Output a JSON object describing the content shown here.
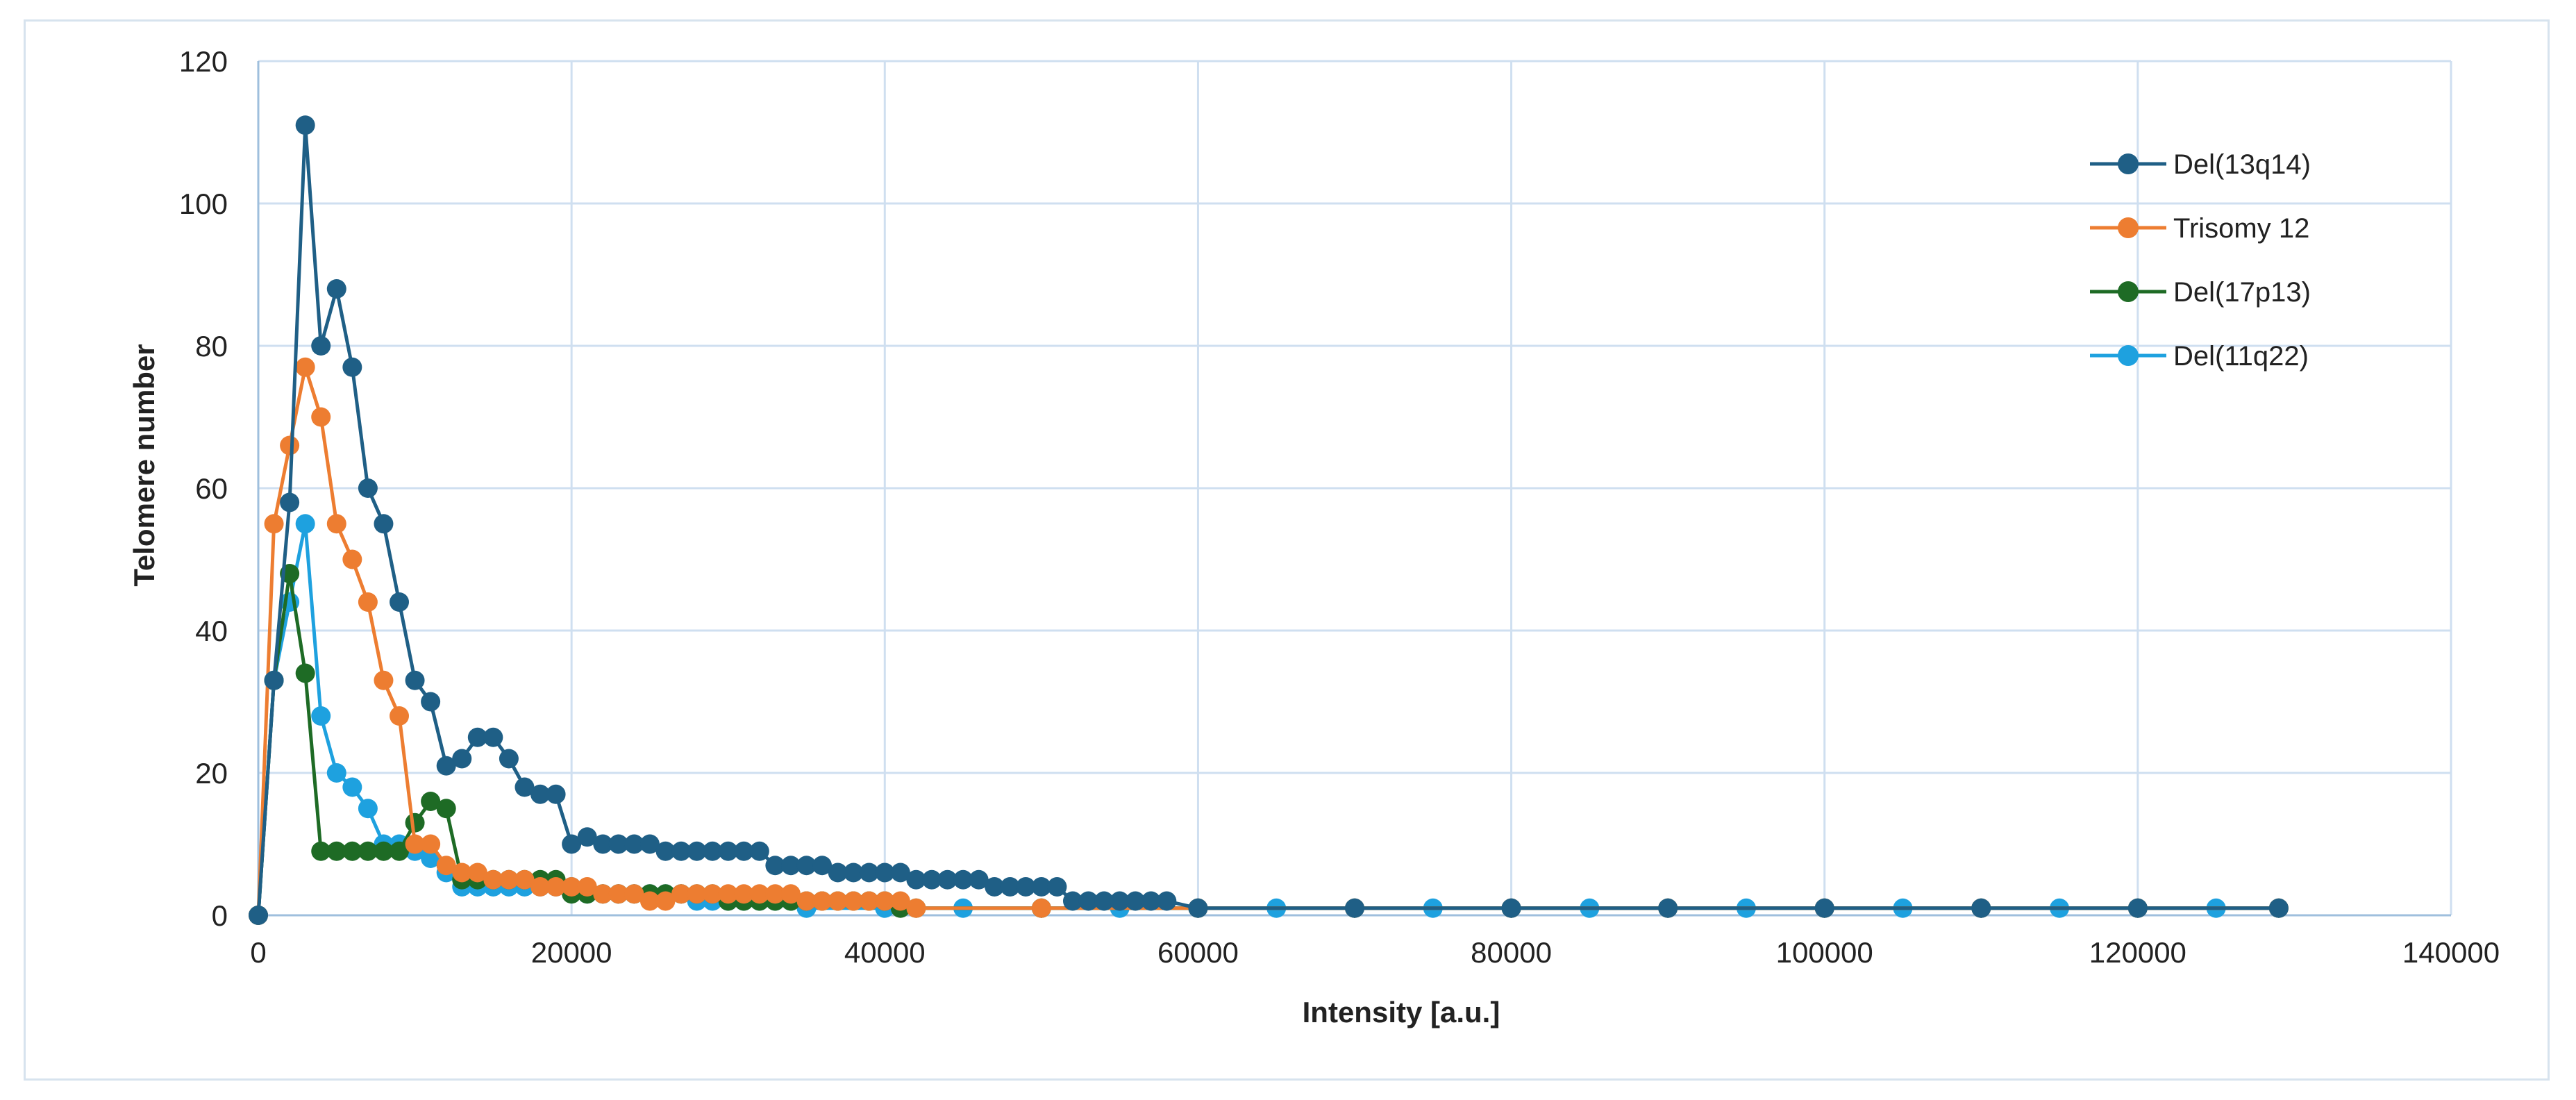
{
  "chart_data": {
    "type": "line",
    "xlabel": "Intensity [a.u.]",
    "ylabel": "Telomere number",
    "xlim": [
      0,
      140000
    ],
    "ylim": [
      0,
      120
    ],
    "x_ticks": [
      "0",
      "20000",
      "40000",
      "60000",
      "80000",
      "100000",
      "120000",
      "140000"
    ],
    "y_ticks": [
      "0",
      "20",
      "40",
      "60",
      "80",
      "100",
      "120"
    ],
    "grid": true,
    "legend_position": "right",
    "series": [
      {
        "name": "Del(13q14)",
        "color": "#1f5f86",
        "x": [
          0,
          1000,
          2000,
          3000,
          4000,
          5000,
          6000,
          7000,
          8000,
          9000,
          10000,
          11000,
          12000,
          13000,
          14000,
          15000,
          16000,
          17000,
          18000,
          19000,
          20000,
          21000,
          22000,
          23000,
          24000,
          25000,
          26000,
          27000,
          28000,
          29000,
          30000,
          31000,
          32000,
          33000,
          34000,
          35000,
          36000,
          37000,
          38000,
          39000,
          40000,
          41000,
          42000,
          43000,
          44000,
          45000,
          46000,
          47000,
          48000,
          49000,
          50000,
          51000,
          52000,
          53000,
          54000,
          55000,
          56000,
          57000,
          58000,
          60000,
          70000,
          80000,
          90000,
          100000,
          110000,
          120000,
          129000
        ],
        "y": [
          0,
          33,
          58,
          111,
          80,
          88,
          77,
          60,
          55,
          44,
          33,
          30,
          21,
          22,
          25,
          25,
          22,
          18,
          17,
          17,
          10,
          11,
          10,
          10,
          10,
          10,
          9,
          9,
          9,
          9,
          9,
          9,
          9,
          7,
          7,
          7,
          7,
          6,
          6,
          6,
          6,
          6,
          5,
          5,
          5,
          5,
          5,
          4,
          4,
          4,
          4,
          4,
          2,
          2,
          2,
          2,
          2,
          2,
          2,
          1,
          1,
          1,
          1,
          1,
          1,
          1,
          1
        ]
      },
      {
        "name": "Trisomy 12",
        "color": "#ed7d31",
        "x": [
          0,
          1000,
          2000,
          3000,
          4000,
          5000,
          6000,
          7000,
          8000,
          9000,
          10000,
          11000,
          12000,
          13000,
          14000,
          15000,
          16000,
          17000,
          18000,
          19000,
          20000,
          21000,
          22000,
          23000,
          24000,
          25000,
          26000,
          27000,
          28000,
          29000,
          30000,
          31000,
          32000,
          33000,
          34000,
          35000,
          36000,
          37000,
          38000,
          39000,
          40000,
          41000,
          42000,
          50000,
          60000,
          70000,
          80000,
          90000,
          100000,
          110000,
          120000,
          129000
        ],
        "y": [
          0,
          55,
          66,
          77,
          70,
          55,
          50,
          44,
          33,
          28,
          10,
          10,
          7,
          6,
          6,
          5,
          5,
          5,
          4,
          4,
          4,
          4,
          3,
          3,
          3,
          2,
          2,
          3,
          3,
          3,
          3,
          3,
          3,
          3,
          3,
          2,
          2,
          2,
          2,
          2,
          2,
          2,
          1,
          1,
          1,
          1,
          1,
          1,
          1,
          1,
          1,
          1
        ]
      },
      {
        "name": "Del(17p13)",
        "color": "#1e6b25",
        "x": [
          0,
          1000,
          2000,
          3000,
          4000,
          5000,
          6000,
          7000,
          8000,
          9000,
          10000,
          11000,
          12000,
          13000,
          14000,
          15000,
          16000,
          17000,
          18000,
          19000,
          20000,
          21000,
          22000,
          23000,
          24000,
          25000,
          26000,
          27000,
          28000,
          29000,
          30000,
          31000,
          32000,
          33000,
          34000,
          35000,
          36000,
          37000,
          38000,
          39000,
          40000,
          41000,
          42000,
          50000,
          60000,
          70000,
          80000,
          90000,
          100000,
          110000,
          120000,
          129000
        ],
        "y": [
          0,
          33,
          48,
          34,
          9,
          9,
          9,
          9,
          9,
          9,
          13,
          16,
          15,
          5,
          5,
          5,
          5,
          5,
          5,
          5,
          3,
          3,
          3,
          3,
          3,
          3,
          3,
          3,
          3,
          3,
          2,
          2,
          2,
          2,
          2,
          2,
          2,
          2,
          2,
          2,
          2,
          1,
          1,
          1,
          1,
          1,
          1,
          1,
          1,
          1,
          1,
          1
        ]
      },
      {
        "name": "Del(11q22)",
        "color": "#1ea1df",
        "x": [
          0,
          1000,
          2000,
          3000,
          4000,
          5000,
          6000,
          7000,
          8000,
          9000,
          10000,
          11000,
          12000,
          13000,
          14000,
          15000,
          16000,
          17000,
          18000,
          19000,
          20000,
          21000,
          22000,
          23000,
          24000,
          25000,
          26000,
          27000,
          28000,
          29000,
          30000,
          31000,
          32000,
          33000,
          34000,
          35000,
          40000,
          45000,
          50000,
          55000,
          60000,
          65000,
          70000,
          75000,
          80000,
          85000,
          90000,
          95000,
          100000,
          105000,
          110000,
          115000,
          120000,
          125000,
          129000
        ],
        "y": [
          0,
          33,
          44,
          55,
          28,
          20,
          18,
          15,
          10,
          10,
          9,
          8,
          6,
          4,
          4,
          4,
          4,
          4,
          4,
          4,
          4,
          3,
          3,
          3,
          3,
          3,
          3,
          3,
          2,
          2,
          2,
          2,
          2,
          2,
          2,
          1,
          1,
          1,
          1,
          1,
          1,
          1,
          1,
          1,
          1,
          1,
          1,
          1,
          1,
          1,
          1,
          1,
          1,
          1,
          1
        ]
      }
    ]
  }
}
